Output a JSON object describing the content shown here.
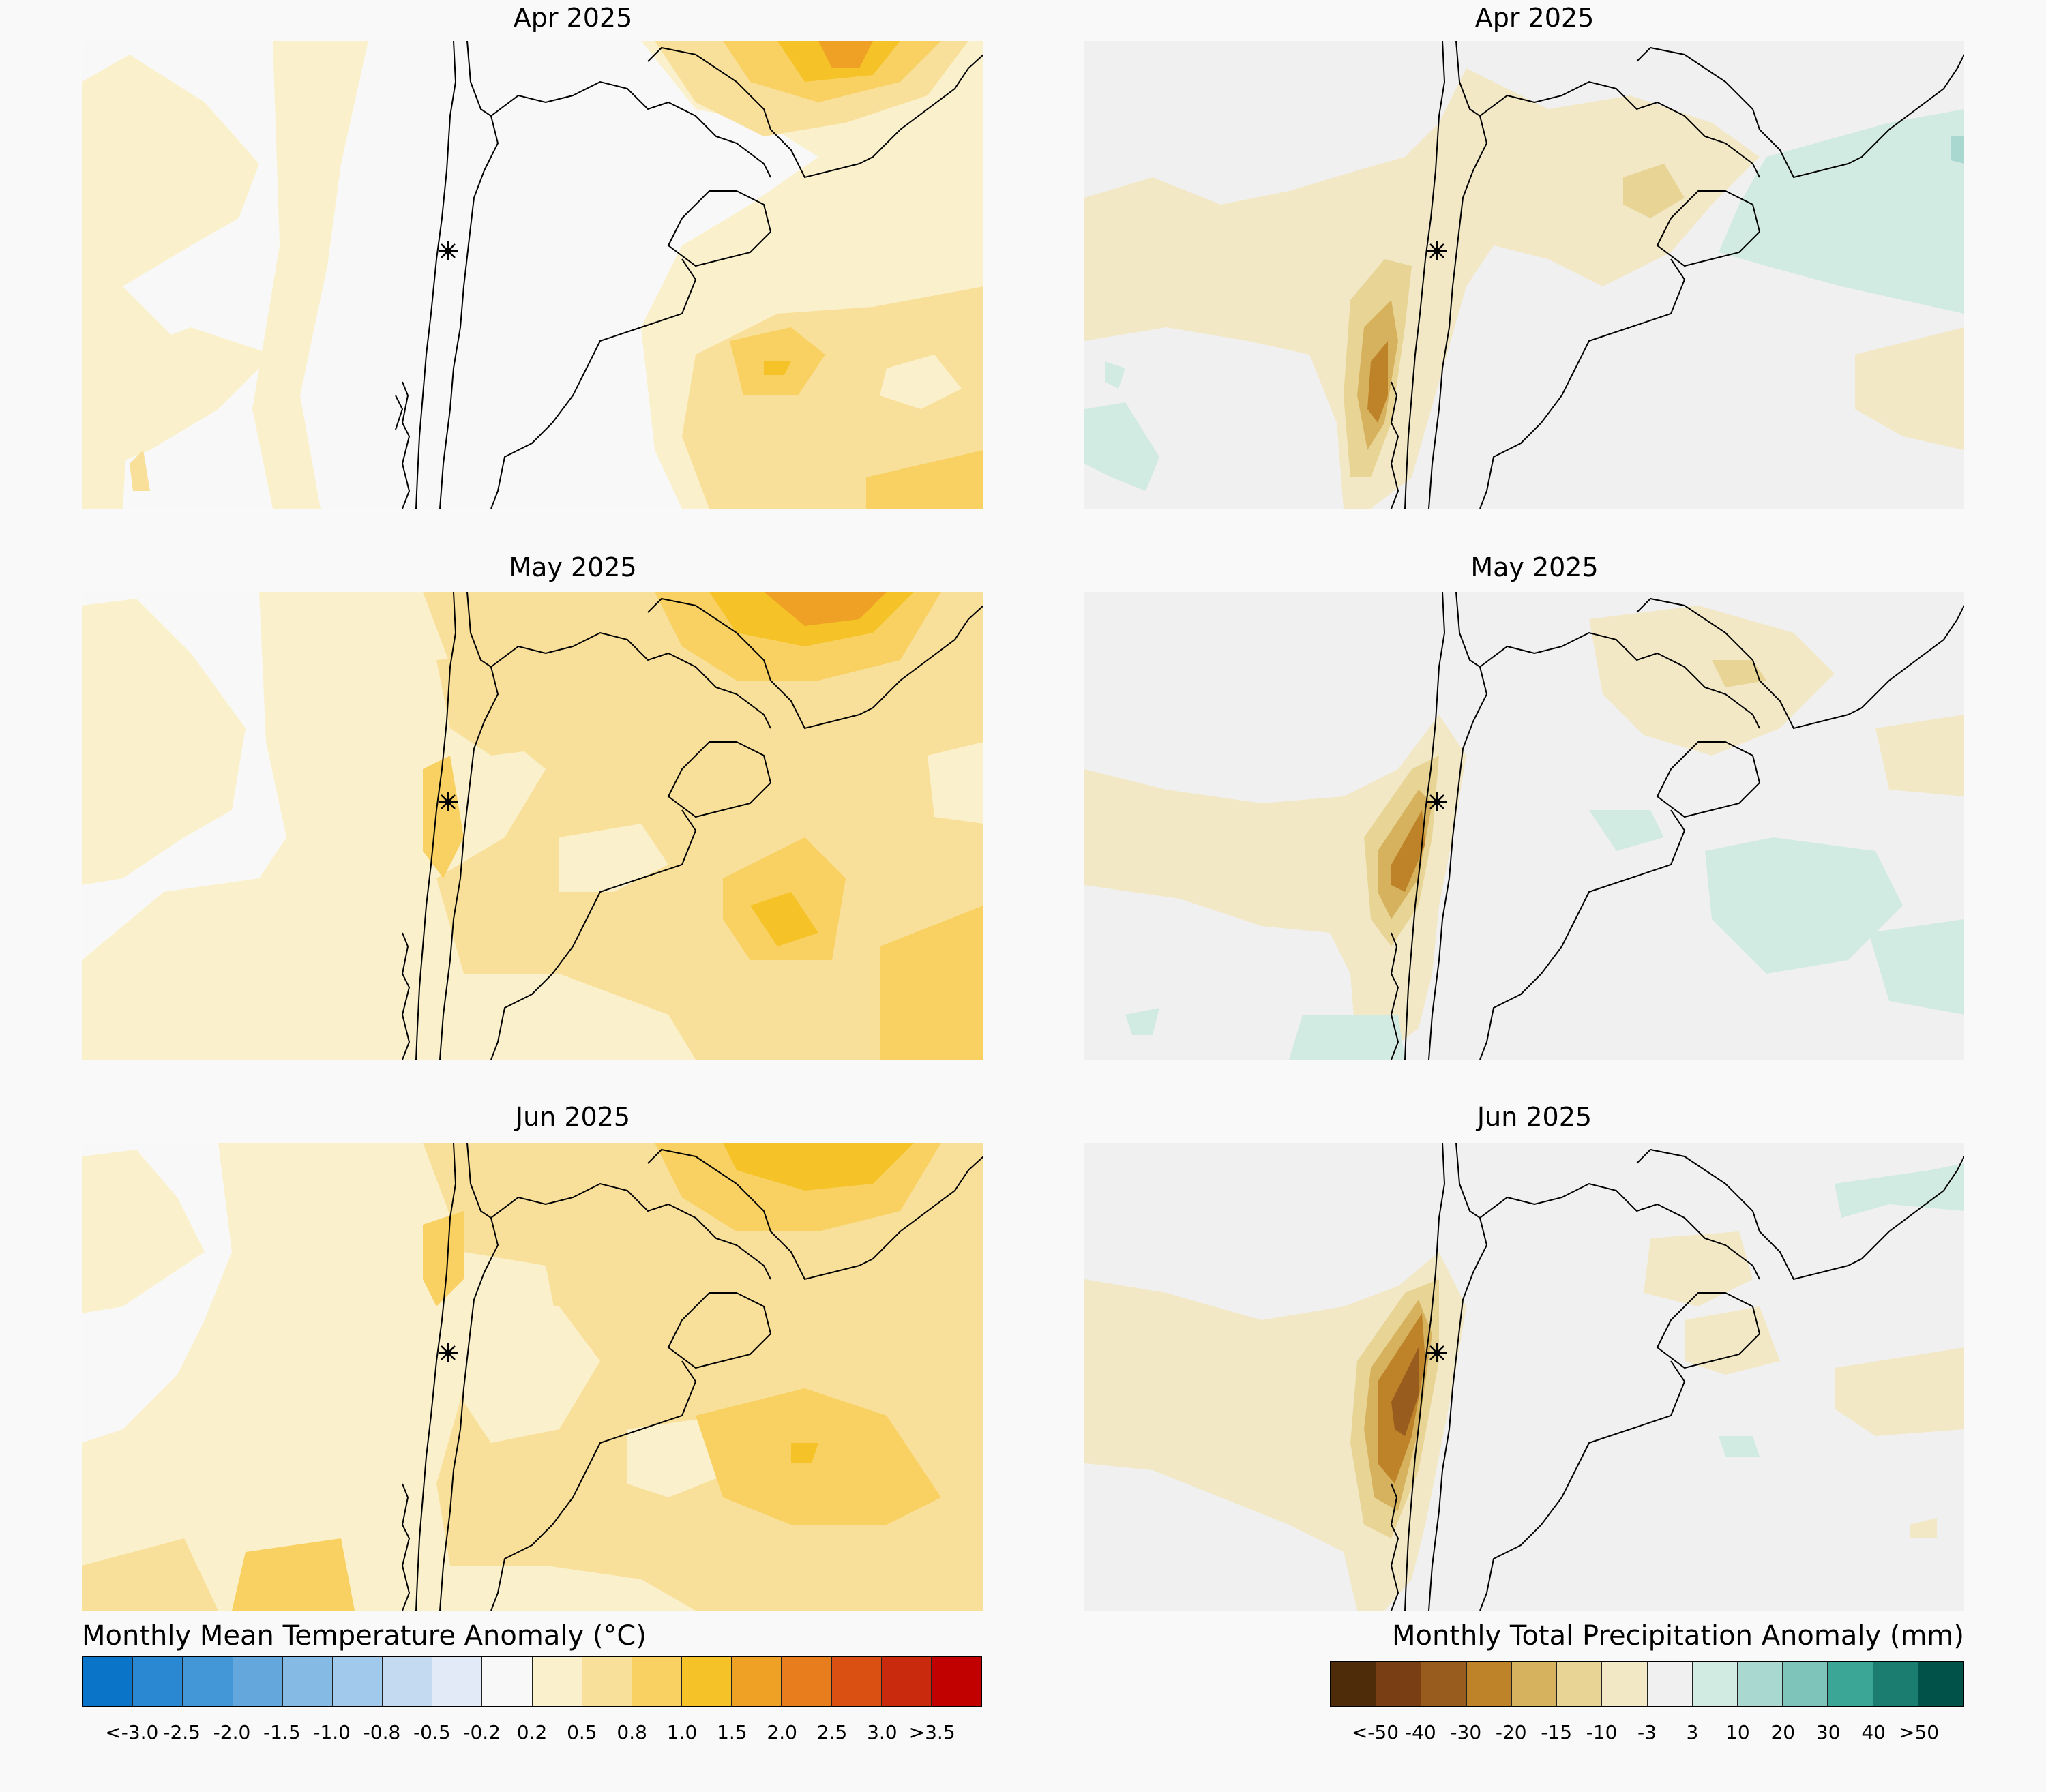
{
  "panels": [
    {
      "title": "Apr 2025",
      "variable": "temperature",
      "col": 0,
      "row": 0
    },
    {
      "title": "Apr 2025",
      "variable": "precipitation",
      "col": 1,
      "row": 0
    },
    {
      "title": "May 2025",
      "variable": "temperature",
      "col": 0,
      "row": 1
    },
    {
      "title": "May 2025",
      "variable": "precipitation",
      "col": 1,
      "row": 1
    },
    {
      "title": "Jun 2025",
      "variable": "temperature",
      "col": 0,
      "row": 2
    },
    {
      "title": "Jun 2025",
      "variable": "precipitation",
      "col": 1,
      "row": 2
    }
  ],
  "temperature_legend": {
    "title": "Monthly Mean Temperature Anomaly (°C)",
    "colors": [
      "#0a74c8",
      "#2a88d2",
      "#4497d6",
      "#63a7dc",
      "#84bae3",
      "#a1c9eb",
      "#c4daf1",
      "#e2eaf7",
      "#f8f8f8",
      "#faf1cc",
      "#f9e09a",
      "#f8d162",
      "#f5c328",
      "#efa125",
      "#e77d1c",
      "#d95012",
      "#c92a0d",
      "#c10000"
    ],
    "ticks": [
      "<-3.0",
      "-2.5",
      "-2.0",
      "-1.5",
      "-1.0",
      "-0.8",
      "-0.5",
      "-0.2",
      "0.2",
      "0.5",
      "0.8",
      "1.0",
      "1.5",
      "2.0",
      "2.5",
      "3.0",
      ">3.5"
    ]
  },
  "precipitation_legend": {
    "title": "Monthly Total Precipitation Anomaly (mm)",
    "colors": [
      "#4e2c0a",
      "#7a3e15",
      "#995c1f",
      "#be8329",
      "#d7b25e",
      "#e8d596",
      "#f2e8c6",
      "#f0f0f0",
      "#d1eae2",
      "#a9d8d0",
      "#7fc4bb",
      "#3ba696",
      "#1a7d70",
      "#015349"
    ],
    "ticks": [
      "<-50",
      "-40",
      "-30",
      "-20",
      "-15",
      "-10",
      "-3",
      "3",
      "10",
      "20",
      "30",
      "40",
      ">50"
    ]
  }
}
